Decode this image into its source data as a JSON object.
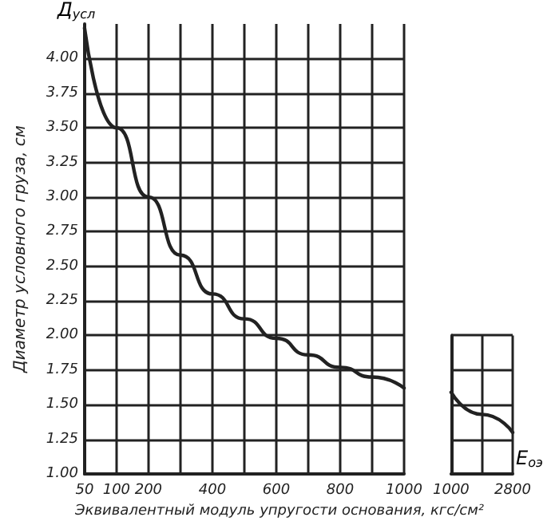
{
  "chart_data": [
    {
      "type": "line",
      "xlabel": "Эквивалентный модуль упругости основания, кгс/см²",
      "ylabel": "Диаметр условного груза, см",
      "annotations": [
        "Д$_{усл}$",
        "E$_{оэ}$"
      ],
      "categories": [
        "50",
        "100",
        "200",
        null,
        "400",
        null,
        "600",
        null,
        "800",
        null,
        "1000"
      ],
      "series": [
        {
          "color": "#222222",
          "values": [
            4.22,
            3.5,
            3.0,
            2.58,
            2.3,
            2.12,
            1.98,
            1.86,
            1.77,
            1.7,
            1.62
          ]
        }
      ],
      "ylim": [
        1,
        4.25
      ],
      "yticks": [
        {
          "value": 1,
          "label": "1.00"
        },
        {
          "value": 1.25,
          "label": "1.25"
        },
        {
          "value": 1.5,
          "label": "1.50"
        },
        {
          "value": 1.75,
          "label": "1.75"
        },
        {
          "value": 2,
          "label": "2.00"
        },
        {
          "value": 2.25,
          "label": "2.25"
        },
        {
          "value": 2.5,
          "label": "2.50"
        },
        {
          "value": 2.75,
          "label": "2.75"
        },
        {
          "value": 3,
          "label": "3.00"
        },
        {
          "value": 3.25,
          "label": "3.25"
        },
        {
          "value": 3.5,
          "label": "3.50"
        },
        {
          "value": 3.75,
          "label": "3.75"
        },
        {
          "value": 4,
          "label": "4.00"
        }
      ],
      "grid": true,
      "marker": "none",
      "line_style": "solid"
    },
    {
      "type": "line",
      "categories": [
        "1000",
        null,
        "2800"
      ],
      "series": [
        {
          "color": "#222222",
          "values": [
            1.59,
            1.43,
            1.3
          ]
        }
      ],
      "ylim": [
        1,
        2
      ],
      "yticks": [
        1,
        1.25,
        1.5,
        1.75,
        2
      ],
      "grid": true,
      "marker": "none",
      "line_style": "solid",
      "tick_labels": "x"
    }
  ]
}
